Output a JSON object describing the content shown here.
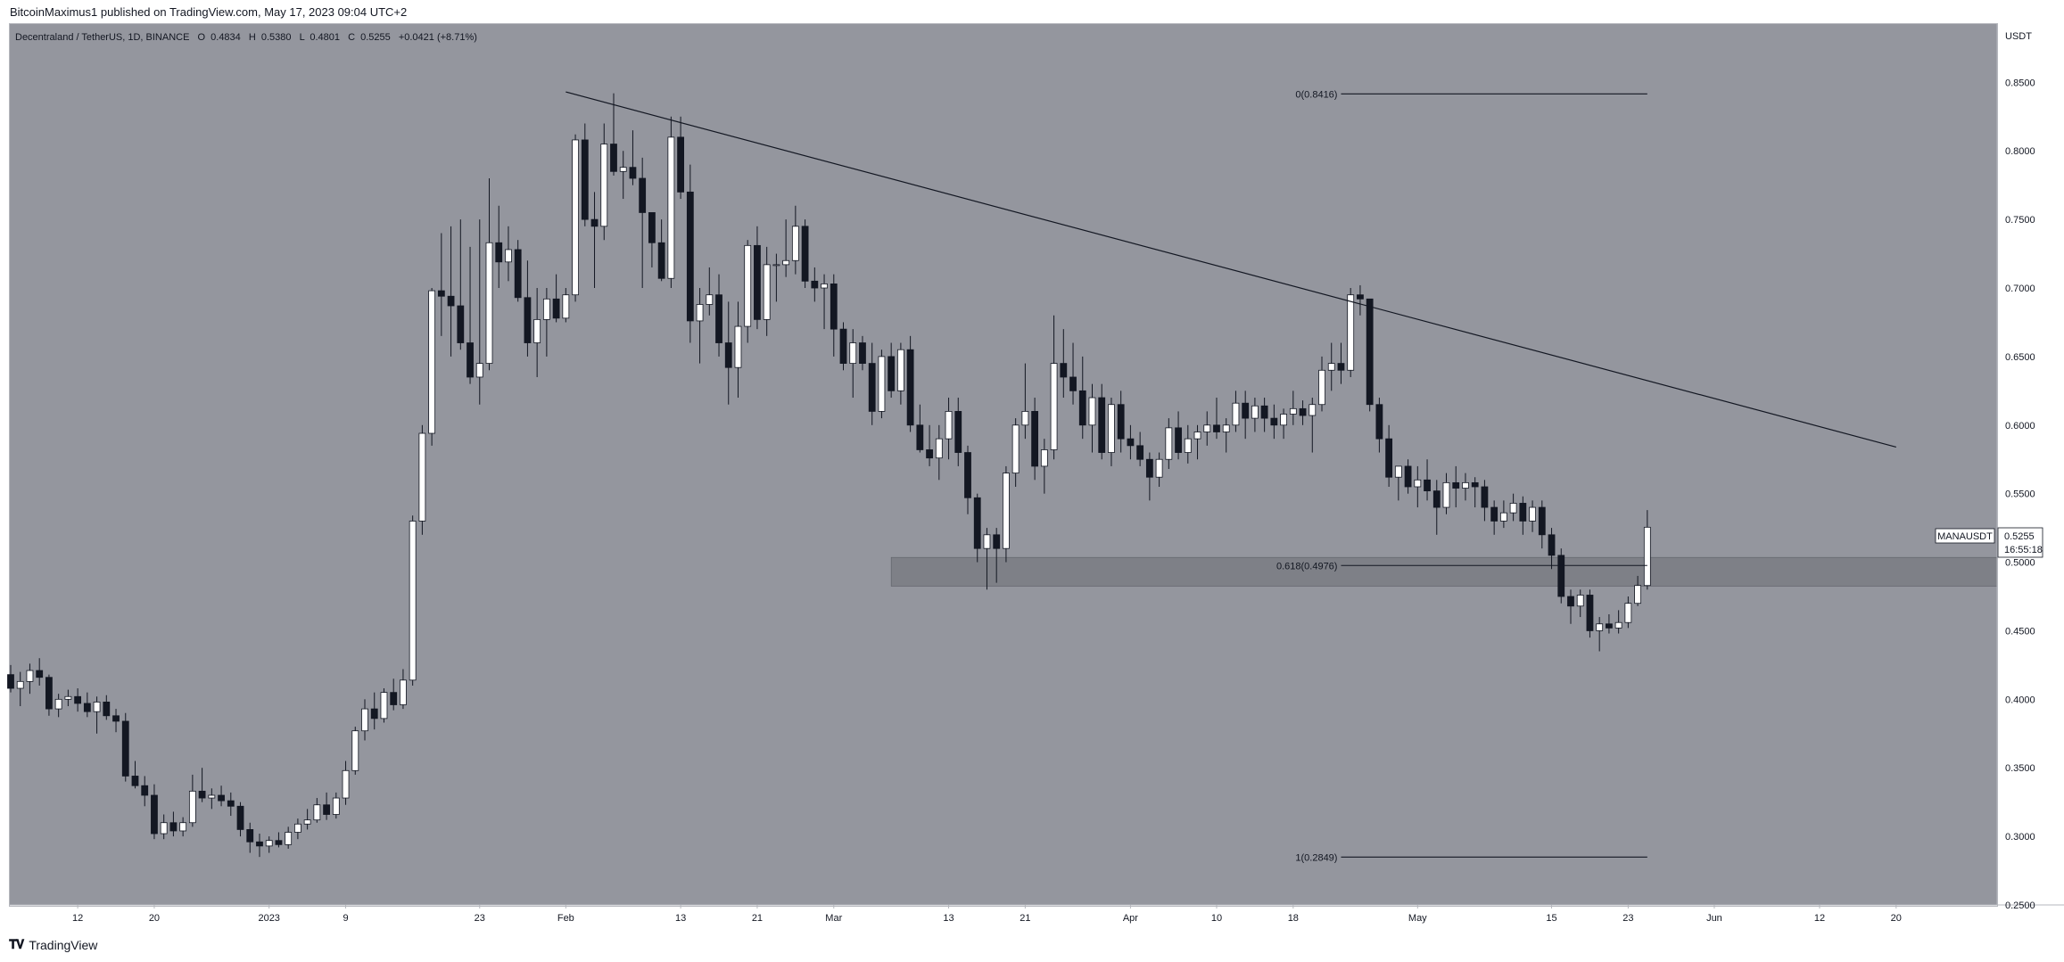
{
  "caption": "BitcoinMaximus1 published on TradingView.com, May 17, 2023 09:04 UTC+2",
  "footer": {
    "brand": "TradingView",
    "logo_icon": "tradingview-logo-icon"
  },
  "colors": {
    "background": "#94969e",
    "bull": "#ffffff",
    "bear": "#131722",
    "zone": "#7e8087",
    "line": "#131722"
  },
  "chart_data": {
    "type": "candlestick",
    "header": {
      "pair": "Decentraland / TetherUS, 1D, BINANCE",
      "o_label": "O",
      "o": "0.4834",
      "h_label": "H",
      "h": "0.5380",
      "l_label": "L",
      "l": "0.4801",
      "c_label": "C",
      "c": "0.5255",
      "change": "+0.0421 (+8.71%)"
    },
    "currency": "USDT",
    "ylim": [
      0.25,
      0.8925
    ],
    "y_ticks": [
      "0.8500",
      "0.8000",
      "0.7500",
      "0.7000",
      "0.6500",
      "0.6000",
      "0.5500",
      "0.5000",
      "0.4500",
      "0.4000",
      "0.3500",
      "0.3000",
      "0.2500"
    ],
    "x_ticks": [
      {
        "label": "12",
        "date": "2022-12-12"
      },
      {
        "label": "20",
        "date": "2022-12-20"
      },
      {
        "label": "2023",
        "date": "2023-01-01"
      },
      {
        "label": "9",
        "date": "2023-01-09"
      },
      {
        "label": "23",
        "date": "2023-01-23"
      },
      {
        "label": "Feb",
        "date": "2023-02-01"
      },
      {
        "label": "13",
        "date": "2023-02-13"
      },
      {
        "label": "21",
        "date": "2023-02-21"
      },
      {
        "label": "Mar",
        "date": "2023-03-01"
      },
      {
        "label": "13",
        "date": "2023-03-13"
      },
      {
        "label": "21",
        "date": "2023-03-21"
      },
      {
        "label": "Apr",
        "date": "2023-04-01"
      },
      {
        "label": "10",
        "date": "2023-04-10"
      },
      {
        "label": "18",
        "date": "2023-04-18"
      },
      {
        "label": "May",
        "date": "2023-05-01"
      },
      {
        "label": "15",
        "date": "2023-05-15"
      },
      {
        "label": "23",
        "date": "2023-05-23"
      },
      {
        "label": "Jun",
        "date": "2023-06-01"
      },
      {
        "label": "12",
        "date": "2023-06-12"
      },
      {
        "label": "20",
        "date": "2023-06-20"
      }
    ],
    "first_date": "2022-12-05",
    "candles": [
      [
        0.418,
        0.425,
        0.405,
        0.408
      ],
      [
        0.408,
        0.42,
        0.395,
        0.413
      ],
      [
        0.413,
        0.426,
        0.404,
        0.421
      ],
      [
        0.421,
        0.43,
        0.41,
        0.416
      ],
      [
        0.416,
        0.418,
        0.388,
        0.393
      ],
      [
        0.393,
        0.404,
        0.387,
        0.4
      ],
      [
        0.4,
        0.407,
        0.395,
        0.402
      ],
      [
        0.402,
        0.408,
        0.391,
        0.397
      ],
      [
        0.397,
        0.405,
        0.387,
        0.391
      ],
      [
        0.391,
        0.402,
        0.375,
        0.398
      ],
      [
        0.398,
        0.403,
        0.385,
        0.388
      ],
      [
        0.388,
        0.393,
        0.376,
        0.384
      ],
      [
        0.384,
        0.39,
        0.34,
        0.344
      ],
      [
        0.344,
        0.355,
        0.335,
        0.337
      ],
      [
        0.337,
        0.344,
        0.322,
        0.33
      ],
      [
        0.33,
        0.338,
        0.298,
        0.302
      ],
      [
        0.302,
        0.316,
        0.298,
        0.31
      ],
      [
        0.31,
        0.318,
        0.3,
        0.304
      ],
      [
        0.304,
        0.314,
        0.3,
        0.31
      ],
      [
        0.31,
        0.345,
        0.307,
        0.333
      ],
      [
        0.333,
        0.35,
        0.325,
        0.328
      ],
      [
        0.328,
        0.335,
        0.32,
        0.33
      ],
      [
        0.33,
        0.337,
        0.322,
        0.326
      ],
      [
        0.326,
        0.332,
        0.315,
        0.322
      ],
      [
        0.322,
        0.325,
        0.3,
        0.305
      ],
      [
        0.305,
        0.31,
        0.288,
        0.296
      ],
      [
        0.296,
        0.302,
        0.285,
        0.293
      ],
      [
        0.293,
        0.3,
        0.288,
        0.297
      ],
      [
        0.297,
        0.303,
        0.292,
        0.294
      ],
      [
        0.294,
        0.307,
        0.291,
        0.303
      ],
      [
        0.303,
        0.313,
        0.298,
        0.309
      ],
      [
        0.309,
        0.32,
        0.305,
        0.312
      ],
      [
        0.312,
        0.328,
        0.31,
        0.323
      ],
      [
        0.323,
        0.332,
        0.312,
        0.316
      ],
      [
        0.316,
        0.332,
        0.313,
        0.328
      ],
      [
        0.328,
        0.355,
        0.323,
        0.348
      ],
      [
        0.348,
        0.38,
        0.345,
        0.377
      ],
      [
        0.377,
        0.4,
        0.37,
        0.393
      ],
      [
        0.393,
        0.405,
        0.378,
        0.386
      ],
      [
        0.386,
        0.408,
        0.383,
        0.405
      ],
      [
        0.405,
        0.415,
        0.392,
        0.396
      ],
      [
        0.396,
        0.422,
        0.393,
        0.414
      ],
      [
        0.414,
        0.534,
        0.41,
        0.53
      ],
      [
        0.53,
        0.6,
        0.52,
        0.594
      ],
      [
        0.594,
        0.7,
        0.585,
        0.698
      ],
      [
        0.698,
        0.74,
        0.665,
        0.694
      ],
      [
        0.694,
        0.745,
        0.65,
        0.687
      ],
      [
        0.687,
        0.75,
        0.655,
        0.66
      ],
      [
        0.66,
        0.73,
        0.63,
        0.635
      ],
      [
        0.635,
        0.75,
        0.615,
        0.645
      ],
      [
        0.645,
        0.78,
        0.64,
        0.733
      ],
      [
        0.733,
        0.76,
        0.7,
        0.719
      ],
      [
        0.719,
        0.745,
        0.705,
        0.728
      ],
      [
        0.728,
        0.735,
        0.69,
        0.693
      ],
      [
        0.693,
        0.72,
        0.65,
        0.66
      ],
      [
        0.66,
        0.7,
        0.635,
        0.677
      ],
      [
        0.677,
        0.7,
        0.65,
        0.692
      ],
      [
        0.692,
        0.71,
        0.675,
        0.678
      ],
      [
        0.678,
        0.7,
        0.675,
        0.695
      ],
      [
        0.695,
        0.812,
        0.69,
        0.808
      ],
      [
        0.808,
        0.82,
        0.745,
        0.75
      ],
      [
        0.75,
        0.77,
        0.7,
        0.745
      ],
      [
        0.745,
        0.82,
        0.735,
        0.805
      ],
      [
        0.805,
        0.842,
        0.782,
        0.785
      ],
      [
        0.785,
        0.8,
        0.765,
        0.788
      ],
      [
        0.788,
        0.815,
        0.775,
        0.78
      ],
      [
        0.78,
        0.795,
        0.7,
        0.755
      ],
      [
        0.755,
        0.755,
        0.715,
        0.733
      ],
      [
        0.733,
        0.75,
        0.705,
        0.707
      ],
      [
        0.707,
        0.825,
        0.7,
        0.81
      ],
      [
        0.81,
        0.825,
        0.765,
        0.77
      ],
      [
        0.77,
        0.79,
        0.66,
        0.676
      ],
      [
        0.676,
        0.7,
        0.645,
        0.688
      ],
      [
        0.688,
        0.715,
        0.68,
        0.695
      ],
      [
        0.695,
        0.71,
        0.65,
        0.66
      ],
      [
        0.66,
        0.69,
        0.615,
        0.642
      ],
      [
        0.642,
        0.69,
        0.62,
        0.672
      ],
      [
        0.672,
        0.735,
        0.66,
        0.731
      ],
      [
        0.731,
        0.745,
        0.67,
        0.677
      ],
      [
        0.677,
        0.73,
        0.665,
        0.717
      ],
      [
        0.717,
        0.725,
        0.69,
        0.717
      ],
      [
        0.717,
        0.75,
        0.708,
        0.72
      ],
      [
        0.72,
        0.76,
        0.71,
        0.745
      ],
      [
        0.745,
        0.75,
        0.7,
        0.705
      ],
      [
        0.705,
        0.715,
        0.69,
        0.7
      ],
      [
        0.7,
        0.71,
        0.67,
        0.703
      ],
      [
        0.703,
        0.71,
        0.65,
        0.67
      ],
      [
        0.67,
        0.675,
        0.64,
        0.645
      ],
      [
        0.645,
        0.67,
        0.62,
        0.66
      ],
      [
        0.66,
        0.665,
        0.64,
        0.645
      ],
      [
        0.645,
        0.66,
        0.6,
        0.61
      ],
      [
        0.61,
        0.655,
        0.605,
        0.65
      ],
      [
        0.65,
        0.66,
        0.62,
        0.625
      ],
      [
        0.625,
        0.66,
        0.615,
        0.655
      ],
      [
        0.655,
        0.665,
        0.595,
        0.6
      ],
      [
        0.6,
        0.615,
        0.58,
        0.582
      ],
      [
        0.582,
        0.6,
        0.57,
        0.576
      ],
      [
        0.576,
        0.6,
        0.56,
        0.59
      ],
      [
        0.59,
        0.62,
        0.575,
        0.61
      ],
      [
        0.61,
        0.62,
        0.57,
        0.58
      ],
      [
        0.58,
        0.585,
        0.535,
        0.547
      ],
      [
        0.547,
        0.55,
        0.5,
        0.51
      ],
      [
        0.51,
        0.525,
        0.48,
        0.52
      ],
      [
        0.52,
        0.525,
        0.485,
        0.51
      ],
      [
        0.51,
        0.57,
        0.5,
        0.565
      ],
      [
        0.565,
        0.605,
        0.555,
        0.6
      ],
      [
        0.6,
        0.645,
        0.59,
        0.61
      ],
      [
        0.61,
        0.62,
        0.56,
        0.57
      ],
      [
        0.57,
        0.59,
        0.55,
        0.582
      ],
      [
        0.582,
        0.68,
        0.575,
        0.645
      ],
      [
        0.645,
        0.67,
        0.62,
        0.635
      ],
      [
        0.635,
        0.66,
        0.615,
        0.625
      ],
      [
        0.625,
        0.65,
        0.59,
        0.6
      ],
      [
        0.6,
        0.63,
        0.58,
        0.62
      ],
      [
        0.62,
        0.63,
        0.575,
        0.58
      ],
      [
        0.58,
        0.62,
        0.57,
        0.615
      ],
      [
        0.615,
        0.625,
        0.58,
        0.59
      ],
      [
        0.59,
        0.6,
        0.575,
        0.585
      ],
      [
        0.585,
        0.595,
        0.57,
        0.575
      ],
      [
        0.575,
        0.58,
        0.545,
        0.562
      ],
      [
        0.562,
        0.58,
        0.555,
        0.575
      ],
      [
        0.575,
        0.605,
        0.568,
        0.598
      ],
      [
        0.598,
        0.61,
        0.575,
        0.58
      ],
      [
        0.58,
        0.6,
        0.572,
        0.59
      ],
      [
        0.59,
        0.6,
        0.575,
        0.595
      ],
      [
        0.595,
        0.61,
        0.585,
        0.6
      ],
      [
        0.6,
        0.62,
        0.59,
        0.595
      ],
      [
        0.595,
        0.605,
        0.58,
        0.6
      ],
      [
        0.6,
        0.625,
        0.595,
        0.616
      ],
      [
        0.616,
        0.625,
        0.59,
        0.605
      ],
      [
        0.605,
        0.62,
        0.595,
        0.614
      ],
      [
        0.614,
        0.62,
        0.595,
        0.605
      ],
      [
        0.605,
        0.615,
        0.59,
        0.6
      ],
      [
        0.6,
        0.612,
        0.59,
        0.608
      ],
      [
        0.608,
        0.625,
        0.6,
        0.612
      ],
      [
        0.612,
        0.618,
        0.6,
        0.607
      ],
      [
        0.607,
        0.62,
        0.58,
        0.615
      ],
      [
        0.615,
        0.65,
        0.61,
        0.64
      ],
      [
        0.64,
        0.66,
        0.625,
        0.645
      ],
      [
        0.645,
        0.66,
        0.63,
        0.64
      ],
      [
        0.64,
        0.7,
        0.635,
        0.695
      ],
      [
        0.695,
        0.702,
        0.68,
        0.692
      ],
      [
        0.692,
        0.692,
        0.61,
        0.615
      ],
      [
        0.615,
        0.62,
        0.58,
        0.59
      ],
      [
        0.59,
        0.6,
        0.555,
        0.562
      ],
      [
        0.562,
        0.57,
        0.545,
        0.57
      ],
      [
        0.57,
        0.575,
        0.55,
        0.555
      ],
      [
        0.555,
        0.57,
        0.54,
        0.56
      ],
      [
        0.56,
        0.575,
        0.545,
        0.552
      ],
      [
        0.552,
        0.56,
        0.52,
        0.54
      ],
      [
        0.54,
        0.565,
        0.535,
        0.558
      ],
      [
        0.558,
        0.57,
        0.54,
        0.554
      ],
      [
        0.554,
        0.565,
        0.545,
        0.558
      ],
      [
        0.558,
        0.562,
        0.54,
        0.555
      ],
      [
        0.555,
        0.56,
        0.53,
        0.54
      ],
      [
        0.54,
        0.545,
        0.52,
        0.53
      ],
      [
        0.53,
        0.545,
        0.525,
        0.536
      ],
      [
        0.536,
        0.55,
        0.53,
        0.543
      ],
      [
        0.543,
        0.548,
        0.52,
        0.53
      ],
      [
        0.53,
        0.545,
        0.522,
        0.54
      ],
      [
        0.54,
        0.545,
        0.51,
        0.52
      ],
      [
        0.52,
        0.525,
        0.495,
        0.505
      ],
      [
        0.505,
        0.51,
        0.47,
        0.475
      ],
      [
        0.475,
        0.48,
        0.455,
        0.468
      ],
      [
        0.468,
        0.48,
        0.46,
        0.476
      ],
      [
        0.476,
        0.48,
        0.445,
        0.45
      ],
      [
        0.45,
        0.46,
        0.435,
        0.455
      ],
      [
        0.455,
        0.462,
        0.448,
        0.452
      ],
      [
        0.452,
        0.465,
        0.448,
        0.456
      ],
      [
        0.456,
        0.475,
        0.452,
        0.47
      ],
      [
        0.47,
        0.49,
        0.468,
        0.483
      ],
      [
        0.483,
        0.538,
        0.48,
        0.5255
      ]
    ],
    "trendline": [
      {
        "date": "2023-02-01",
        "value": 0.843
      },
      {
        "date": "2023-06-20",
        "value": 0.584
      }
    ],
    "support_zone": {
      "start": "2023-03-07",
      "high": 0.5035,
      "low": 0.4825
    },
    "fib_levels": [
      {
        "label": "0(0.8416)",
        "value": 0.8416,
        "start": "2023-04-23",
        "end": "2023-05-25"
      },
      {
        "label": "0.618(0.4976)",
        "value": 0.4976,
        "start": "2023-04-23",
        "end": "2023-05-25"
      },
      {
        "label": "1(0.2849)",
        "value": 0.2849,
        "start": "2023-04-23",
        "end": "2023-05-25"
      }
    ],
    "last_price": {
      "symbol": "MANAUSDT",
      "price": "0.5255",
      "countdown": "16:55:18"
    }
  }
}
